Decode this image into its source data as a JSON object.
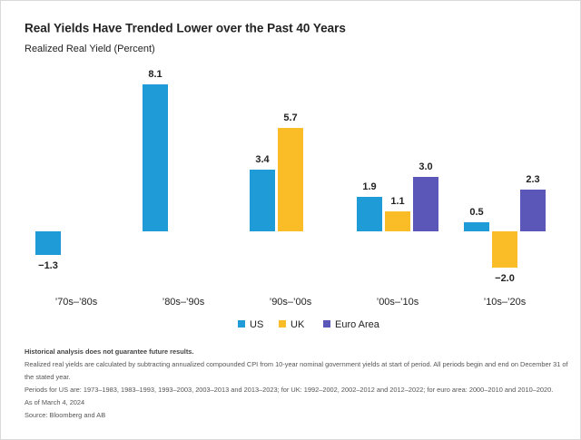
{
  "chart_data": {
    "type": "bar",
    "title": "Real Yields Have Trended Lower over the Past 40 Years",
    "subtitle": "Realized Real Yield (Percent)",
    "categories": [
      "’70s–’80s",
      "’80s–’90s",
      "’90s–’00s",
      "’00s–’10s",
      "’10s–’20s"
    ],
    "series": [
      {
        "name": "US",
        "color": "#1f9bd7",
        "values": [
          -1.3,
          8.1,
          3.4,
          1.9,
          0.5
        ],
        "value_labels": [
          "−1.3",
          "8.1",
          "3.4",
          "1.9",
          "0.5"
        ]
      },
      {
        "name": "UK",
        "color": "#fbbd27",
        "values": [
          null,
          null,
          5.7,
          1.1,
          -2.0
        ],
        "value_labels": [
          null,
          null,
          "5.7",
          "1.1",
          "−2.0"
        ]
      },
      {
        "name": "Euro Area",
        "color": "#5b57b8",
        "values": [
          null,
          null,
          null,
          3.0,
          2.3
        ],
        "value_labels": [
          null,
          null,
          null,
          "3.0",
          "2.3"
        ]
      }
    ],
    "notes": [
      "Historical analysis does not guarantee future results.",
      "Realized real yields are calculated by subtracting annualized compounded CPI from 10-year nominal government yields at start of period. All periods begin and end on December 31 of the stated year.",
      "Periods for US are: 1973–1983, 1983–1993, 1993–2003, 2003–2013 and 2013–2023; for UK: 1992–2002, 2002–2012 and 2012–2022; for euro area: 2000–2010 and 2010–2020.",
      "As of March 4, 2024",
      "Source: Bloomberg and AB"
    ]
  }
}
